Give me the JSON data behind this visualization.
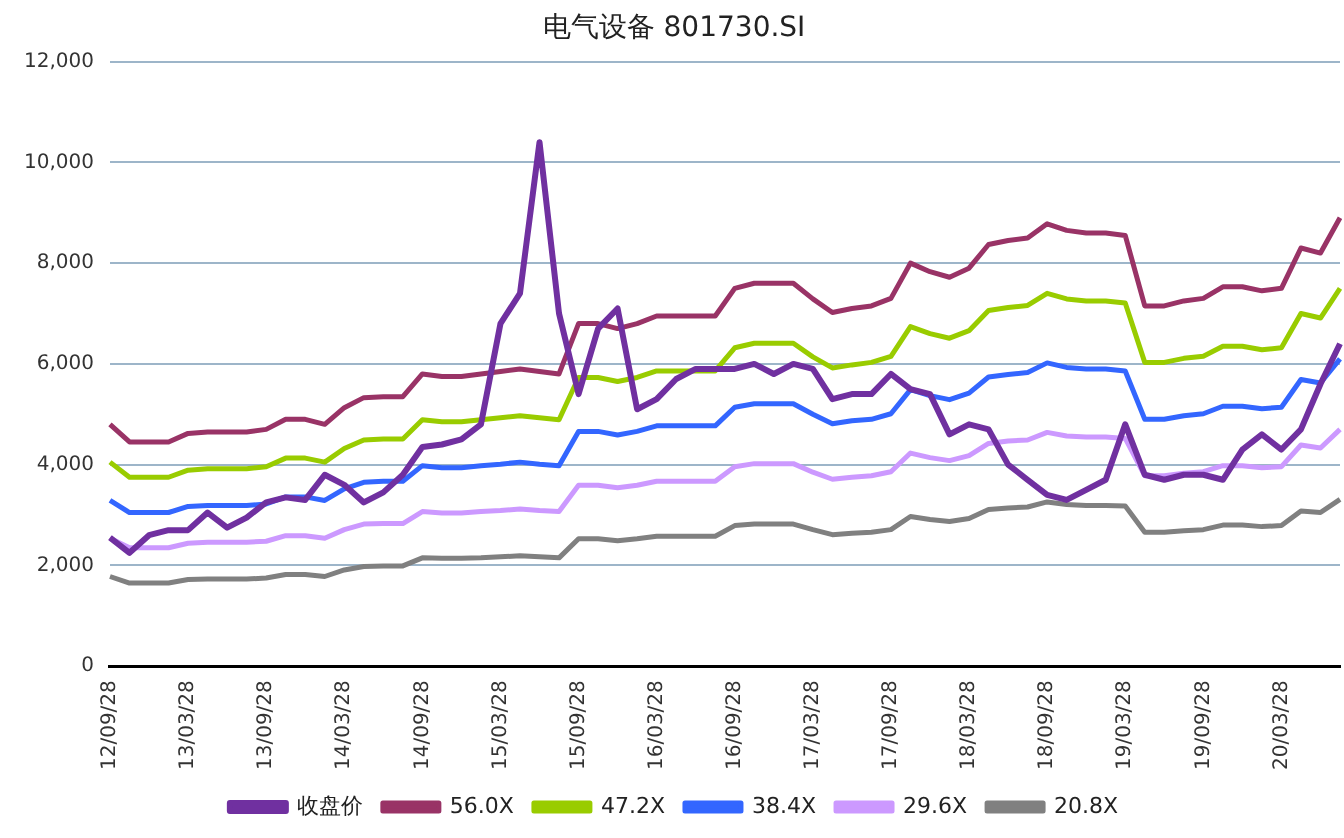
{
  "chart_data": {
    "type": "line",
    "title": "电气设备 801730.SI",
    "categories": [
      "12/09/28",
      null,
      null,
      null,
      "13/03/28",
      null,
      null,
      null,
      "13/09/28",
      null,
      null,
      null,
      "14/03/28",
      null,
      null,
      null,
      "14/09/28",
      null,
      null,
      null,
      "15/03/28",
      null,
      null,
      null,
      "15/09/28",
      null,
      null,
      null,
      "16/03/28",
      null,
      null,
      null,
      "16/09/28",
      null,
      null,
      null,
      "17/03/28",
      null,
      null,
      null,
      "17/09/28",
      null,
      null,
      null,
      "18/03/28",
      null,
      null,
      null,
      "18/09/28",
      null,
      null,
      null,
      "19/03/28",
      null,
      null,
      null,
      "19/09/28",
      null,
      null,
      null,
      "20/03/28",
      null,
      null,
      null
    ],
    "series": [
      {
        "name": "收盘价",
        "color": "#7030a0",
        "values": [
          2550,
          2250,
          2600,
          2700,
          2700,
          3050,
          2750,
          2950,
          3250,
          3350,
          3300,
          3800,
          3600,
          3250,
          3450,
          3800,
          4350,
          4400,
          4500,
          4800,
          6800,
          7400,
          10400,
          7000,
          5400,
          6700,
          7100,
          5100,
          5300,
          5700,
          5900,
          5900,
          5900,
          6000,
          5800,
          6000,
          5900,
          5300,
          5400,
          5400,
          5800,
          5500,
          5400,
          4600,
          4800,
          4700,
          4000,
          3700,
          3400,
          3300,
          3500,
          3700,
          4800,
          3800,
          3700,
          3800,
          3800,
          3700,
          4300,
          4600,
          4300,
          4700,
          5600,
          6400
        ]
      },
      {
        "name": "56.0X",
        "color": "#993366",
        "values": [
          4800,
          4450,
          4450,
          4450,
          4620,
          4650,
          4650,
          4650,
          4700,
          4900,
          4900,
          4800,
          5130,
          5330,
          5350,
          5350,
          5800,
          5750,
          5750,
          5800,
          5850,
          5900,
          5850,
          5800,
          6800,
          6800,
          6700,
          6800,
          6950,
          6950,
          6950,
          6950,
          7500,
          7600,
          7600,
          7600,
          7290,
          7020,
          7100,
          7150,
          7300,
          8000,
          7830,
          7720,
          7900,
          8370,
          8450,
          8500,
          8780,
          8650,
          8600,
          8600,
          8550,
          7150,
          7150,
          7250,
          7300,
          7530,
          7530,
          7450,
          7500,
          8300,
          8200,
          8900
        ]
      },
      {
        "name": "47.2X",
        "color": "#99cc00",
        "values": [
          4050,
          3750,
          3750,
          3750,
          3890,
          3920,
          3920,
          3920,
          3960,
          4130,
          4130,
          4050,
          4320,
          4490,
          4510,
          4510,
          4890,
          4850,
          4850,
          4890,
          4930,
          4970,
          4930,
          4890,
          5730,
          5730,
          5650,
          5730,
          5860,
          5860,
          5860,
          5860,
          6320,
          6410,
          6410,
          6410,
          6140,
          5920,
          5980,
          6030,
          6150,
          6740,
          6600,
          6510,
          6660,
          7060,
          7120,
          7160,
          7400,
          7290,
          7250,
          7250,
          7210,
          6030,
          6030,
          6110,
          6150,
          6350,
          6350,
          6280,
          6320,
          7000,
          6910,
          7500
        ]
      },
      {
        "name": "38.4X",
        "color": "#3366ff",
        "values": [
          3290,
          3050,
          3050,
          3050,
          3170,
          3190,
          3190,
          3190,
          3220,
          3360,
          3360,
          3290,
          3520,
          3650,
          3670,
          3670,
          3980,
          3940,
          3940,
          3980,
          4010,
          4050,
          4010,
          3980,
          4660,
          4660,
          4590,
          4660,
          4770,
          4770,
          4770,
          4770,
          5140,
          5210,
          5210,
          5210,
          5000,
          4810,
          4870,
          4900,
          5010,
          5490,
          5370,
          5290,
          5420,
          5740,
          5790,
          5830,
          6020,
          5930,
          5900,
          5900,
          5860,
          4900,
          4900,
          4970,
          5010,
          5160,
          5160,
          5110,
          5140,
          5690,
          5620,
          6100
        ]
      },
      {
        "name": "29.6X",
        "color": "#cc99ff",
        "values": [
          2540,
          2350,
          2350,
          2350,
          2440,
          2460,
          2460,
          2460,
          2480,
          2590,
          2590,
          2540,
          2710,
          2820,
          2830,
          2830,
          3070,
          3040,
          3040,
          3070,
          3090,
          3120,
          3090,
          3070,
          3590,
          3590,
          3540,
          3590,
          3670,
          3670,
          3670,
          3670,
          3960,
          4020,
          4020,
          4020,
          3850,
          3710,
          3750,
          3780,
          3860,
          4230,
          4140,
          4080,
          4180,
          4420,
          4470,
          4490,
          4640,
          4570,
          4550,
          4550,
          4520,
          3780,
          3780,
          3830,
          3860,
          3980,
          3980,
          3940,
          3960,
          4390,
          4330,
          4700
        ]
      },
      {
        "name": "20.8X",
        "color": "#808080",
        "values": [
          1780,
          1650,
          1650,
          1650,
          1720,
          1730,
          1730,
          1730,
          1750,
          1820,
          1820,
          1780,
          1910,
          1980,
          1990,
          1990,
          2150,
          2140,
          2140,
          2150,
          2170,
          2190,
          2170,
          2150,
          2530,
          2530,
          2490,
          2530,
          2580,
          2580,
          2580,
          2580,
          2790,
          2820,
          2820,
          2820,
          2710,
          2610,
          2640,
          2660,
          2710,
          2970,
          2910,
          2870,
          2930,
          3110,
          3140,
          3160,
          3260,
          3210,
          3190,
          3190,
          3180,
          2660,
          2660,
          2690,
          2710,
          2800,
          2800,
          2770,
          2790,
          3080,
          3050,
          3310
        ]
      }
    ],
    "ylim": [
      0,
      12000
    ],
    "yticks": [
      0,
      {
        "value": 2000,
        "label": "2,000"
      },
      {
        "value": 4000,
        "label": "4,000"
      },
      {
        "value": 6000,
        "label": "6,000"
      },
      {
        "value": 8000,
        "label": "8,000"
      },
      {
        "value": 10000,
        "label": "10,000"
      },
      {
        "value": 12000,
        "label": "12,000"
      }
    ],
    "grid": "y",
    "legend": "bottom",
    "marker": "none",
    "line_style": "solid"
  }
}
